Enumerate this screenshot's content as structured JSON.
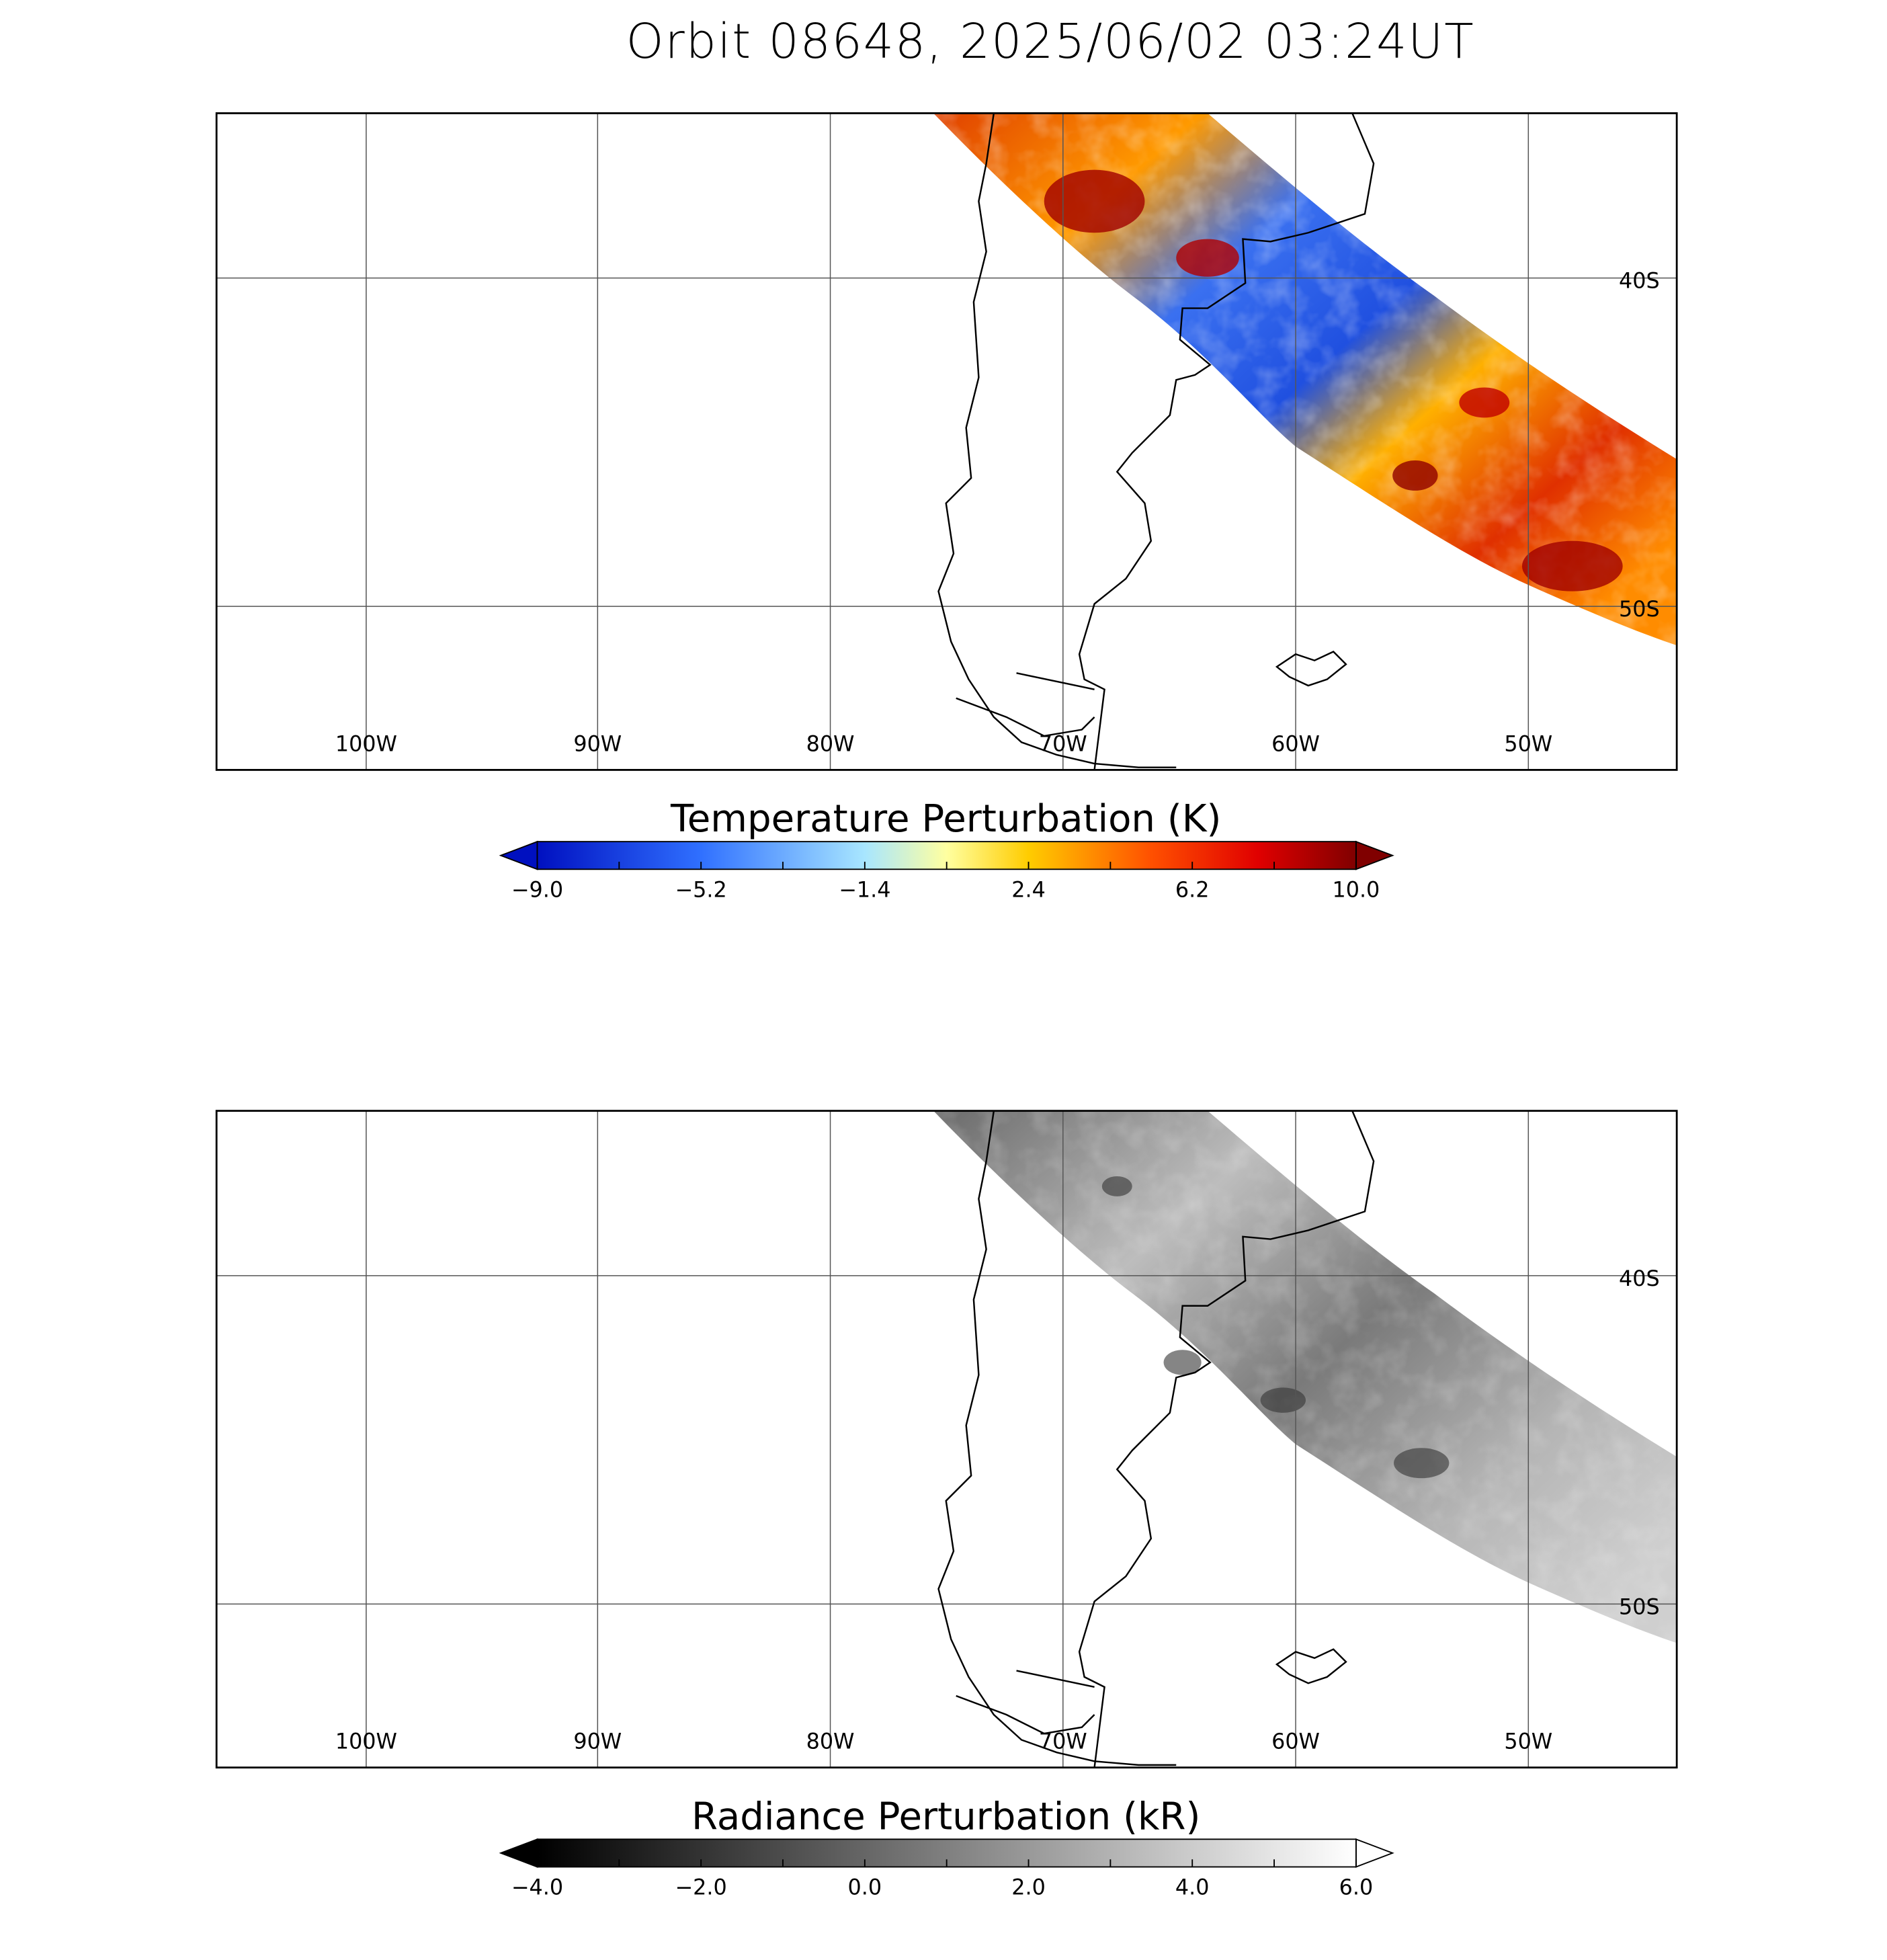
{
  "title": "Orbit 08648, 2025/06/02 03:24UT",
  "panels": [
    {
      "lon_labels": [
        "100W",
        "90W",
        "80W",
        "70W",
        "60W",
        "50W"
      ],
      "lat_labels": [
        "40S",
        "50S"
      ],
      "colorbar": {
        "title": "Temperature Perturbation (K)",
        "ticks": [
          "−9.0",
          "−5.2",
          "−1.4",
          "2.4",
          "6.2",
          "10.0"
        ]
      }
    },
    {
      "lon_labels": [
        "100W",
        "90W",
        "80W",
        "70W",
        "60W",
        "50W"
      ],
      "lat_labels": [
        "40S",
        "50S"
      ],
      "colorbar": {
        "title": "Radiance Perturbation (kR)",
        "ticks": [
          "−4.0",
          "−2.0",
          "0.0",
          "2.0",
          "4.0",
          "6.0"
        ]
      }
    }
  ]
}
